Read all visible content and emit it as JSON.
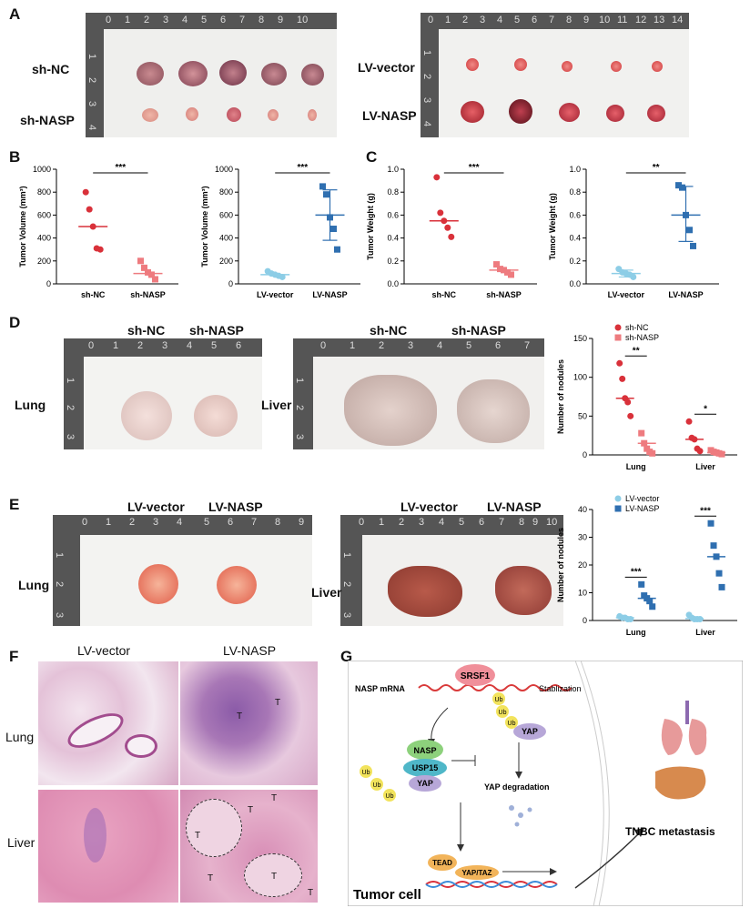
{
  "panels": {
    "A": "A",
    "B": "B",
    "C": "C",
    "D": "D",
    "E": "E",
    "F": "F",
    "G": "G"
  },
  "panelA": {
    "left_rows": [
      "sh-NC",
      "sh-NASP"
    ],
    "right_rows": [
      "LV-vector",
      "LV-NASP"
    ],
    "ruler_left": [
      "0",
      "1",
      "2",
      "3",
      "4",
      "5",
      "6",
      "7",
      "8",
      "9",
      "10"
    ],
    "ruler_right": [
      "0",
      "1",
      "2",
      "3",
      "4",
      "5",
      "6",
      "7",
      "8",
      "9",
      "10",
      "11",
      "12",
      "13",
      "14"
    ],
    "ruler_left_v": [
      "1",
      "2",
      "3",
      "4"
    ],
    "ruler_right_v": [
      "1",
      "2",
      "3",
      "4"
    ]
  },
  "panelD": {
    "left_headers": [
      "sh-NC",
      "sh-NASP"
    ],
    "right_headers": [
      "sh-NC",
      "sh-NASP"
    ],
    "lung": "Lung",
    "liver": "Liver",
    "ruler_left": [
      "0",
      "1",
      "2",
      "3",
      "4",
      "5",
      "6"
    ],
    "ruler_right": [
      "0",
      "1",
      "2",
      "3",
      "4",
      "5",
      "6",
      "7"
    ],
    "ruler_v": [
      "1",
      "2",
      "3"
    ]
  },
  "panelE": {
    "left_headers": [
      "LV-vector",
      "LV-NASP"
    ],
    "right_headers": [
      "LV-vector",
      "LV-NASP"
    ],
    "lung": "Lung",
    "liver": "Liver",
    "ruler_left": [
      "0",
      "1",
      "2",
      "3",
      "4",
      "5",
      "6",
      "7",
      "8",
      "9"
    ],
    "ruler_right": [
      "0",
      "1",
      "2",
      "3",
      "4",
      "5",
      "6",
      "7",
      "8",
      "9",
      "10"
    ],
    "ruler_v": [
      "1",
      "2",
      "3"
    ]
  },
  "panelF": {
    "cols": [
      "LV-vector",
      "LV-NASP"
    ],
    "rows": [
      "Lung",
      "Liver"
    ],
    "tumor_marks": [
      "T",
      "T",
      "T",
      "T",
      "T",
      "T",
      "T",
      "T"
    ]
  },
  "panelG": {
    "nasp_mrna": "NASP mRNA",
    "srsf1": "SRSF1",
    "stabilization": "Stablization",
    "ub": "Ub",
    "yap": "YAP",
    "nasp": "NASP",
    "usp15": "USP15",
    "yap_degradation": "YAP degradation",
    "tead": "TEAD",
    "yap_taz": "YAP/TAZ",
    "tumor_cell": "Tumor cell",
    "tnbc": "TNBC metastasis"
  },
  "colors": {
    "red": "#d9313a",
    "pink": "#ee7b7f",
    "lightblue": "#8dcde6",
    "blue": "#2f6fb0"
  },
  "chart_data": [
    {
      "id": "B1",
      "type": "scatter",
      "categories": [
        "sh-NC",
        "sh-NASP"
      ],
      "series": [
        {
          "values": [
            800,
            650,
            500,
            310,
            300
          ]
        },
        {
          "values": [
            200,
            140,
            100,
            80,
            40
          ]
        }
      ],
      "centers": [
        500,
        90
      ],
      "ylabel": "Tumor Volume (mm³)",
      "ylim": [
        0,
        1000
      ],
      "yticks": [
        "0",
        "200",
        "400",
        "600",
        "800",
        "1000"
      ],
      "sig": "***"
    },
    {
      "id": "B2",
      "type": "scatter",
      "categories": [
        "LV-vector",
        "LV-NASP"
      ],
      "series": [
        {
          "values": [
            110,
            90,
            80,
            70,
            60
          ]
        },
        {
          "values": [
            850,
            780,
            580,
            480,
            300
          ]
        }
      ],
      "centers": [
        80,
        600
      ],
      "error": [
        null,
        [
          380,
          820
        ]
      ],
      "ylabel": "Tumor Volume (mm³)",
      "ylim": [
        0,
        1000
      ],
      "yticks": [
        "0",
        "200",
        "400",
        "600",
        "800",
        "1000"
      ],
      "sig": "***"
    },
    {
      "id": "C1",
      "type": "scatter",
      "categories": [
        "sh-NC",
        "sh-NASP"
      ],
      "series": [
        {
          "values": [
            0.93,
            0.62,
            0.55,
            0.49,
            0.41
          ]
        },
        {
          "values": [
            0.17,
            0.13,
            0.12,
            0.1,
            0.08
          ]
        }
      ],
      "centers": [
        0.55,
        0.12
      ],
      "ylabel": "Tumor Weight (g)",
      "ylim": [
        0,
        1.0
      ],
      "yticks": [
        "0.0",
        "0.2",
        "0.4",
        "0.6",
        "0.8",
        "1.0"
      ],
      "sig": "***"
    },
    {
      "id": "C2",
      "type": "scatter",
      "categories": [
        "LV-vector",
        "LV-NASP"
      ],
      "series": [
        {
          "values": [
            0.13,
            0.1,
            0.09,
            0.08,
            0.06
          ]
        },
        {
          "values": [
            0.86,
            0.84,
            0.6,
            0.47,
            0.33
          ]
        }
      ],
      "centers": [
        0.09,
        0.6
      ],
      "error": [
        [
          0.06,
          0.12
        ],
        [
          0.37,
          0.85
        ]
      ],
      "ylabel": "Tumor Weight (g)",
      "ylim": [
        0,
        1.0
      ],
      "yticks": [
        "0.0",
        "0.2",
        "0.4",
        "0.6",
        "0.8",
        "1.0"
      ],
      "sig": "**"
    },
    {
      "id": "D",
      "type": "scatter",
      "categories": [
        "Lung",
        "Liver"
      ],
      "series": [
        {
          "name": "sh-NC",
          "lung": [
            118,
            98,
            73,
            68,
            50
          ],
          "liver": [
            43,
            22,
            20,
            8,
            5
          ]
        },
        {
          "name": "sh-NASP",
          "lung": [
            28,
            15,
            8,
            4,
            2
          ],
          "liver": [
            6,
            4,
            3,
            2,
            1
          ]
        }
      ],
      "centers": {
        "sh-NC": [
          73,
          20
        ],
        "sh-NASP": [
          15,
          3
        ]
      },
      "ylabel": "Number of nodules",
      "ylim": [
        0,
        150
      ],
      "yticks": [
        "0",
        "50",
        "100",
        "150"
      ],
      "sig": [
        "**",
        "*"
      ]
    },
    {
      "id": "E",
      "type": "scatter",
      "categories": [
        "Lung",
        "Liver"
      ],
      "series": [
        {
          "name": "LV-vector",
          "lung": [
            1.5,
            1,
            1,
            0.5,
            0.5
          ],
          "liver": [
            2,
            1,
            0.5,
            0.5,
            0.5
          ]
        },
        {
          "name": "LV-NASP",
          "lung": [
            13,
            9,
            8,
            7,
            5
          ],
          "liver": [
            35,
            27,
            23,
            17,
            12
          ]
        }
      ],
      "centers": {
        "LV-vector": [
          1,
          0.7
        ],
        "LV-NASP": [
          8,
          23
        ]
      },
      "ylabel": "Number of nodules",
      "ylim": [
        0,
        40
      ],
      "yticks": [
        "0",
        "10",
        "20",
        "30",
        "40"
      ],
      "sig": [
        "***",
        "***"
      ]
    }
  ]
}
